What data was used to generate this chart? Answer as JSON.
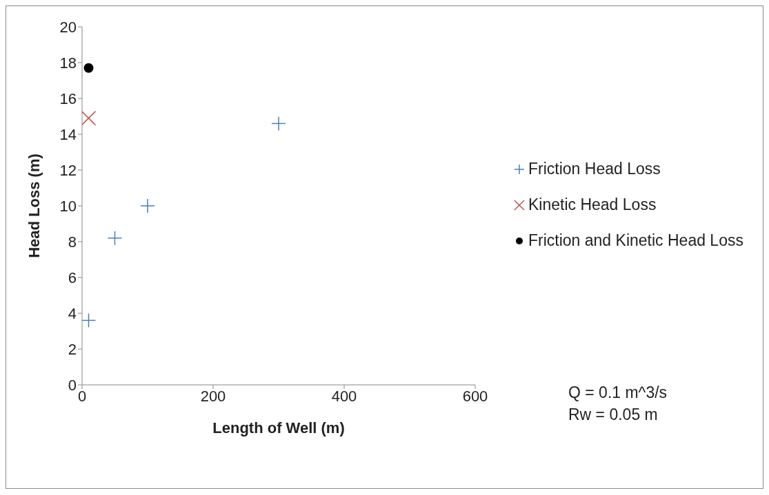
{
  "chart_data": {
    "type": "scatter",
    "xlabel": "Length of Well (m)",
    "ylabel": "Head Loss (m)",
    "xlim": [
      0,
      600
    ],
    "xticks": [
      0,
      200,
      400,
      600
    ],
    "ylim": [
      0,
      20
    ],
    "yticks": [
      0,
      2,
      4,
      6,
      8,
      10,
      12,
      14,
      16,
      18,
      20
    ],
    "grid": false,
    "legend": "right",
    "series": [
      {
        "name": "Friction Head Loss",
        "color": "#4a7ebb",
        "marker": "plus",
        "x": [
          10,
          50,
          100,
          300
        ],
        "values": [
          3.6,
          8.2,
          10,
          14.6
        ]
      },
      {
        "name": "Kinetic Head Loss",
        "color": "#c0504d",
        "marker": "cross",
        "x": [
          10
        ],
        "values": [
          14.9
        ]
      },
      {
        "name": "Friction and Kinetic Head Loss",
        "color": "#000000",
        "marker": "circle",
        "x": [
          10
        ],
        "values": [
          17.7
        ]
      }
    ],
    "annotations": [
      "Q = 0.1 m^3/s",
      "Rw = 0.05 m"
    ]
  }
}
